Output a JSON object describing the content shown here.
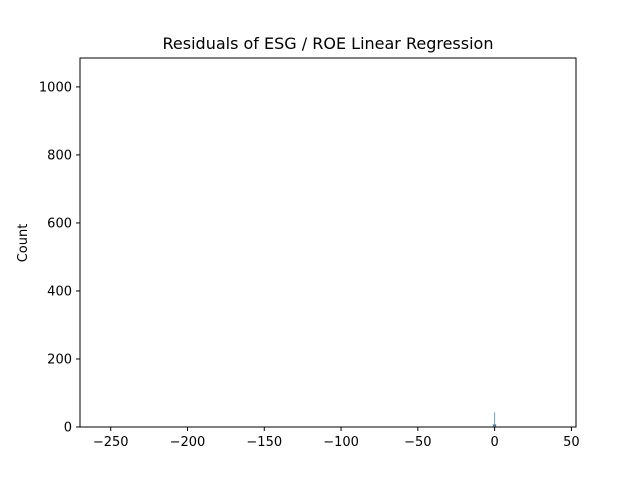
{
  "chart_data": {
    "type": "histogram",
    "title": "Residuals of ESG / ROE Linear Regression",
    "xlabel": "",
    "ylabel": "Count",
    "xlim": [
      -270,
      53
    ],
    "ylim": [
      0,
      1085
    ],
    "x_ticks": [
      -250,
      -200,
      -150,
      -100,
      -50,
      0,
      50
    ],
    "x_tick_labels": [
      "−250",
      "−200",
      "−150",
      "−100",
      "−50",
      "0",
      "50"
    ],
    "y_ticks": [
      0,
      200,
      400,
      600,
      800,
      1000
    ],
    "y_tick_labels": [
      "0",
      "200",
      "400",
      "600",
      "800",
      "1000"
    ],
    "grid": false,
    "bars": [
      {
        "x_start": -1.0,
        "x_end": -0.2,
        "count": 8
      },
      {
        "x_start": -0.2,
        "x_end": 0.3,
        "count": 43
      },
      {
        "x_start": 0.3,
        "x_end": 1.0,
        "count": 8
      }
    ],
    "bar_color": "#4c7ea3"
  }
}
